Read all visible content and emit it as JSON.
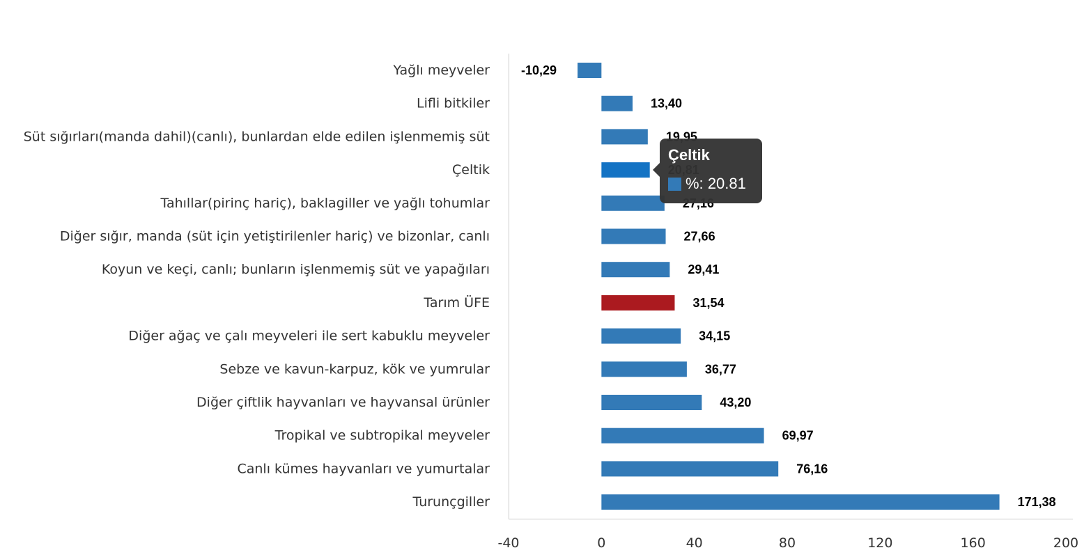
{
  "chart_data": {
    "type": "bar",
    "orientation": "horizontal",
    "categories": [
      "Yağlı meyveler",
      "Lifli bitkiler",
      "Süt sığırları(manda dahil)(canlı), bunlardan elde edilen işlenmemiş süt",
      "Çeltik",
      "Tahıllar(pirinç hariç), baklagiller ve yağlı tohumlar",
      "Diğer sığır, manda (süt için yetiştirilenler hariç) ve bizonlar, canlı",
      "Koyun ve keçi, canlı; bunların işlenmemiş süt ve yapağıları",
      "Tarım ÜFE",
      "Diğer ağaç ve çalı meyveleri ile sert kabuklu meyveler",
      "Sebze ve kavun-karpuz, kök ve yumrular",
      "Diğer çiftlik hayvanları ve hayvansal ürünler",
      "Tropikal ve subtropikal meyveler",
      "Canlı kümes hayvanları ve yumurtalar",
      "Turunçgiller"
    ],
    "values": [
      -10.29,
      13.4,
      19.95,
      20.81,
      27.16,
      27.66,
      29.41,
      31.54,
      34.15,
      36.77,
      43.2,
      69.97,
      76.16,
      171.38
    ],
    "data_labels": [
      "-10,29",
      "13,40",
      "19,95",
      "20,81",
      "27,16",
      "27,66",
      "29,41",
      "31,54",
      "34,15",
      "36,77",
      "43,20",
      "69,97",
      "76,16",
      "171,38"
    ],
    "xlim": [
      -40,
      200
    ],
    "x_ticks": [
      -40,
      0,
      40,
      80,
      120,
      160,
      200
    ],
    "x_tick_labels": [
      "-40",
      "0",
      "40",
      "80",
      "120",
      "160",
      "200"
    ],
    "grid": false,
    "legend": "none",
    "colors": {
      "bar": "#337ab7",
      "highlight_bar": "#ab1a1f",
      "hovered_bar": "#1473c4",
      "axis": "#cccccc"
    },
    "highlight_category": "Tarım ÜFE",
    "hovered_category": "Çeltik"
  },
  "tooltip": {
    "title": "Çeltik",
    "series_prefix": "%:",
    "value_text": "20.81",
    "swatch_color": "#337ab7"
  }
}
